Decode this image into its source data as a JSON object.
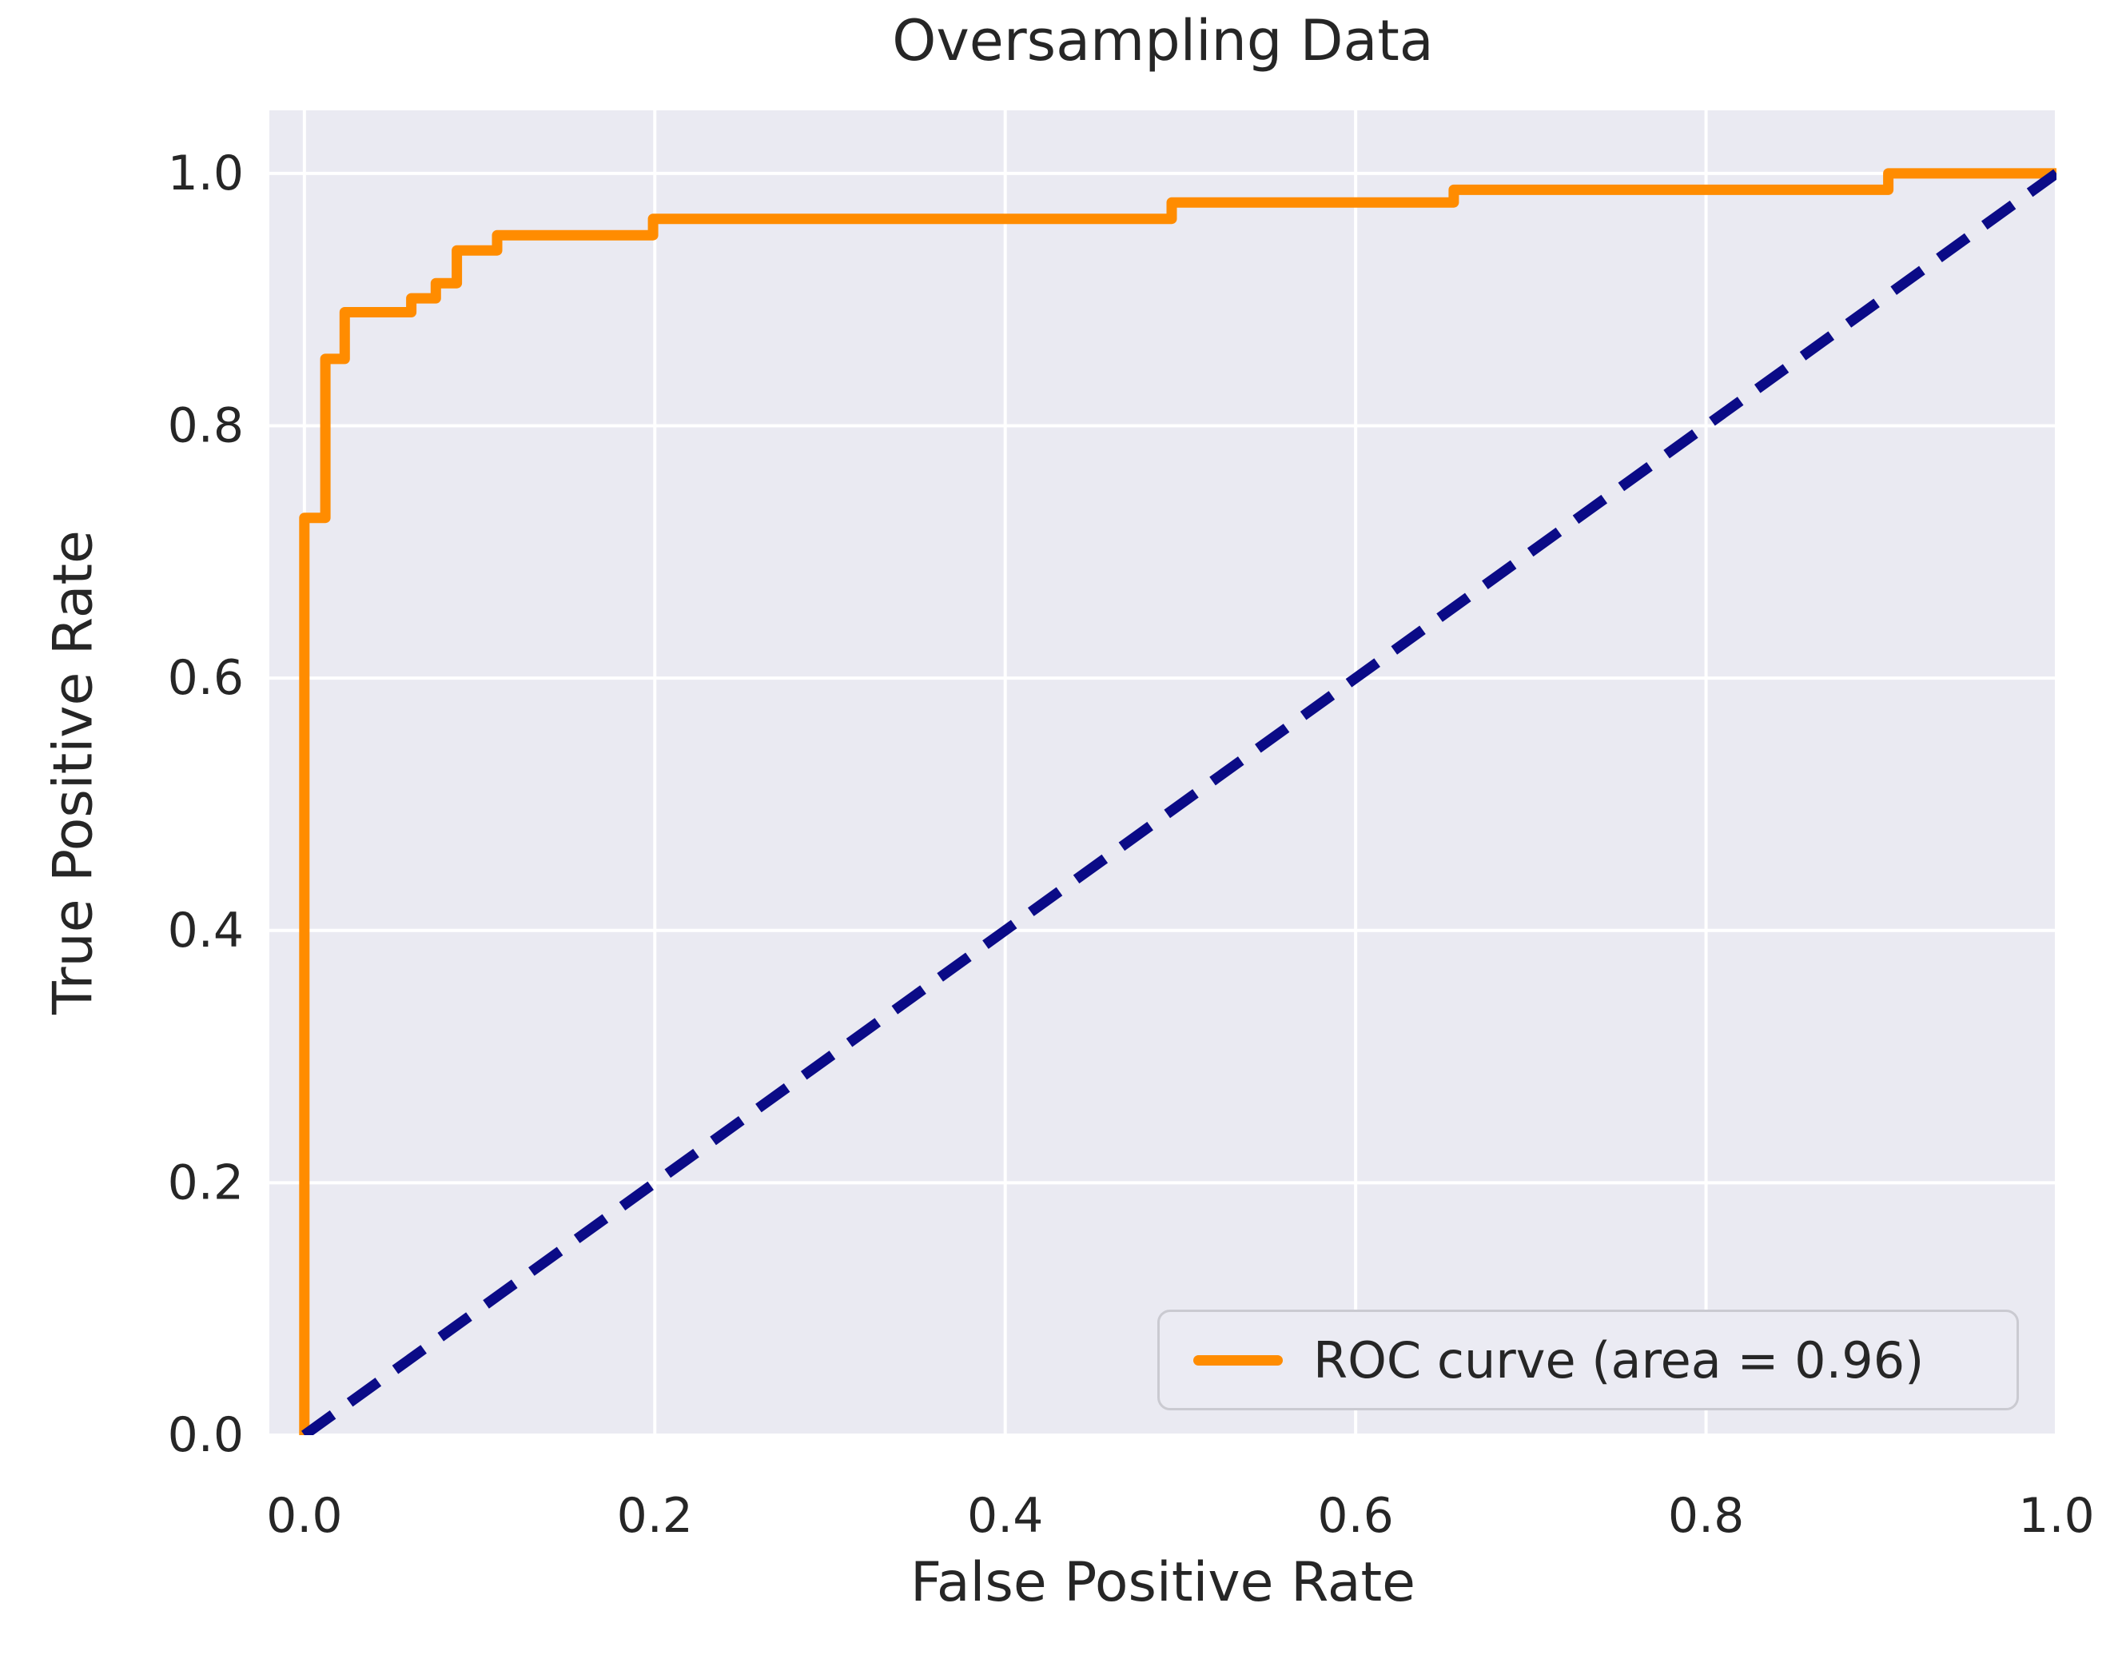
{
  "chart_data": {
    "type": "line",
    "title": "Oversampling Data",
    "xlabel": "False Positive Rate",
    "ylabel": "True Positive Rate",
    "xlim": [
      -0.02,
      1.0
    ],
    "ylim": [
      0.0,
      1.05
    ],
    "xticks": [
      0.0,
      0.2,
      0.4,
      0.6,
      0.8,
      1.0
    ],
    "yticks": [
      0.0,
      0.2,
      0.4,
      0.6,
      0.8,
      1.0
    ],
    "grid": true,
    "legend_position": "lower right",
    "auc": 0.96,
    "colors": {
      "background": "#eaeaf2",
      "grid": "#ffffff",
      "text": "#262626",
      "roc": "#ff8c00",
      "chance": "#0b0b87",
      "legend_bg": "#ebebf3",
      "legend_border": "#cacad1"
    },
    "series": [
      {
        "name": "ROC curve (area = 0.96)",
        "style": "solid",
        "color_key": "roc",
        "points": [
          [
            0.0,
            0.0
          ],
          [
            0.0,
            0.727
          ],
          [
            0.012,
            0.727
          ],
          [
            0.012,
            0.853
          ],
          [
            0.023,
            0.853
          ],
          [
            0.023,
            0.89
          ],
          [
            0.061,
            0.89
          ],
          [
            0.061,
            0.901
          ],
          [
            0.075,
            0.901
          ],
          [
            0.075,
            0.913
          ],
          [
            0.087,
            0.913
          ],
          [
            0.087,
            0.939
          ],
          [
            0.11,
            0.939
          ],
          [
            0.11,
            0.951
          ],
          [
            0.199,
            0.951
          ],
          [
            0.199,
            0.964
          ],
          [
            0.495,
            0.964
          ],
          [
            0.495,
            0.977
          ],
          [
            0.656,
            0.977
          ],
          [
            0.656,
            0.987
          ],
          [
            0.904,
            0.987
          ],
          [
            0.904,
            1.0
          ],
          [
            1.0,
            1.0
          ]
        ]
      },
      {
        "name": "chance-diagonal",
        "style": "dashed",
        "color_key": "chance",
        "points": [
          [
            0.0,
            0.0
          ],
          [
            1.0,
            1.0
          ]
        ]
      }
    ],
    "legend": {
      "entries": [
        {
          "label": "ROC curve (area = 0.96)",
          "color_key": "roc"
        }
      ]
    }
  }
}
